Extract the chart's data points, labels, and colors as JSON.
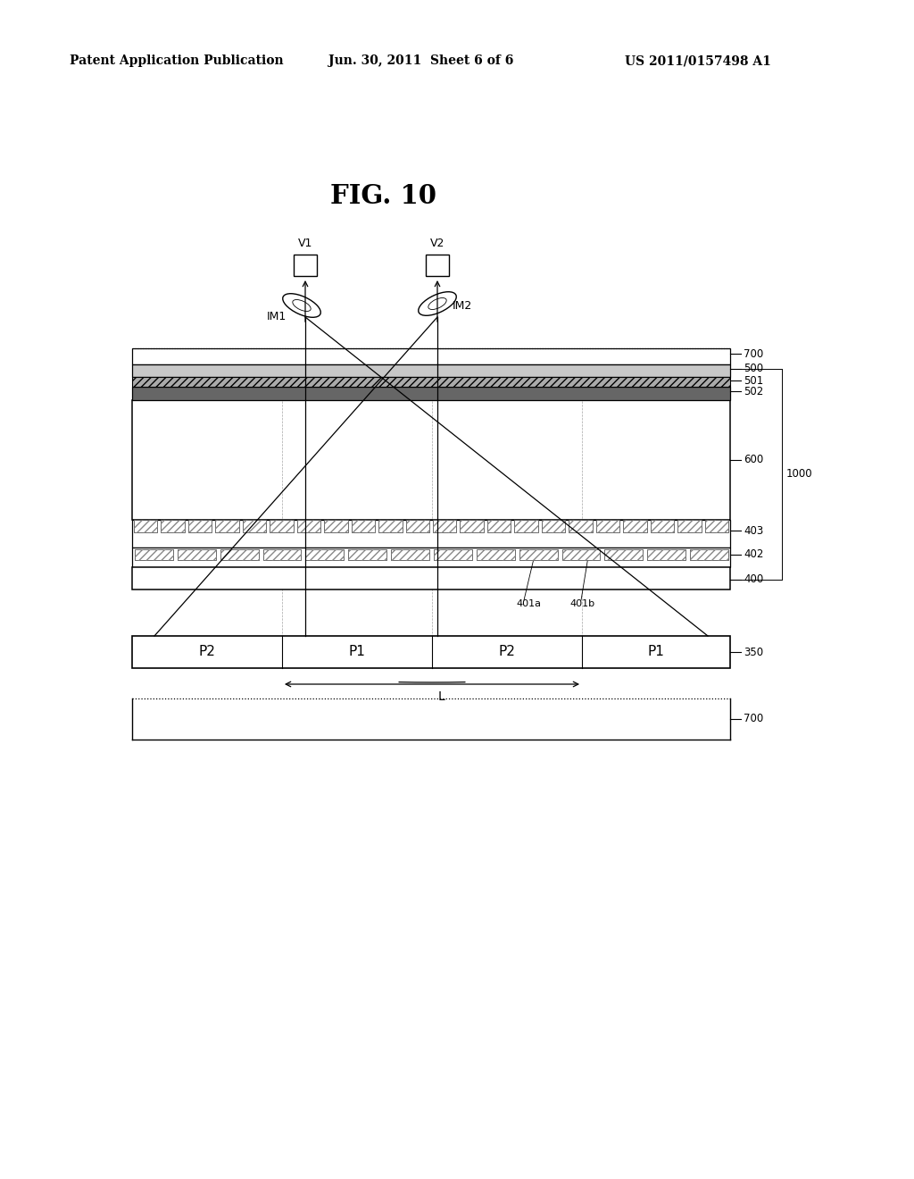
{
  "bg": "#ffffff",
  "header_left": "Patent Application Publication",
  "header_mid": "Jun. 30, 2011  Sheet 6 of 6",
  "header_right": "US 2011/0157498 A1",
  "title": "FIG. 10",
  "panel_labels": [
    "P2",
    "P1",
    "P2",
    "P1"
  ],
  "panel_ref": "350",
  "bot_ref": "700",
  "cam_labels": [
    "V1",
    "V2"
  ],
  "eye_labels": [
    "IM1",
    "IM2"
  ],
  "dim_label": "L",
  "layer_refs": [
    "700",
    "500",
    "501",
    "502",
    "600",
    "403",
    "402",
    "400"
  ],
  "sub_labels": [
    "401a",
    "401b"
  ],
  "group_ref": "1000",
  "lc_layer_color": "#ffffff",
  "top_layer_color": "#d8d8d8",
  "mid_layer_color": "#b0b0b0",
  "thin_dark_color": "#888888",
  "electrode_color": "#c0c0c0",
  "hatch_color": "#888888"
}
